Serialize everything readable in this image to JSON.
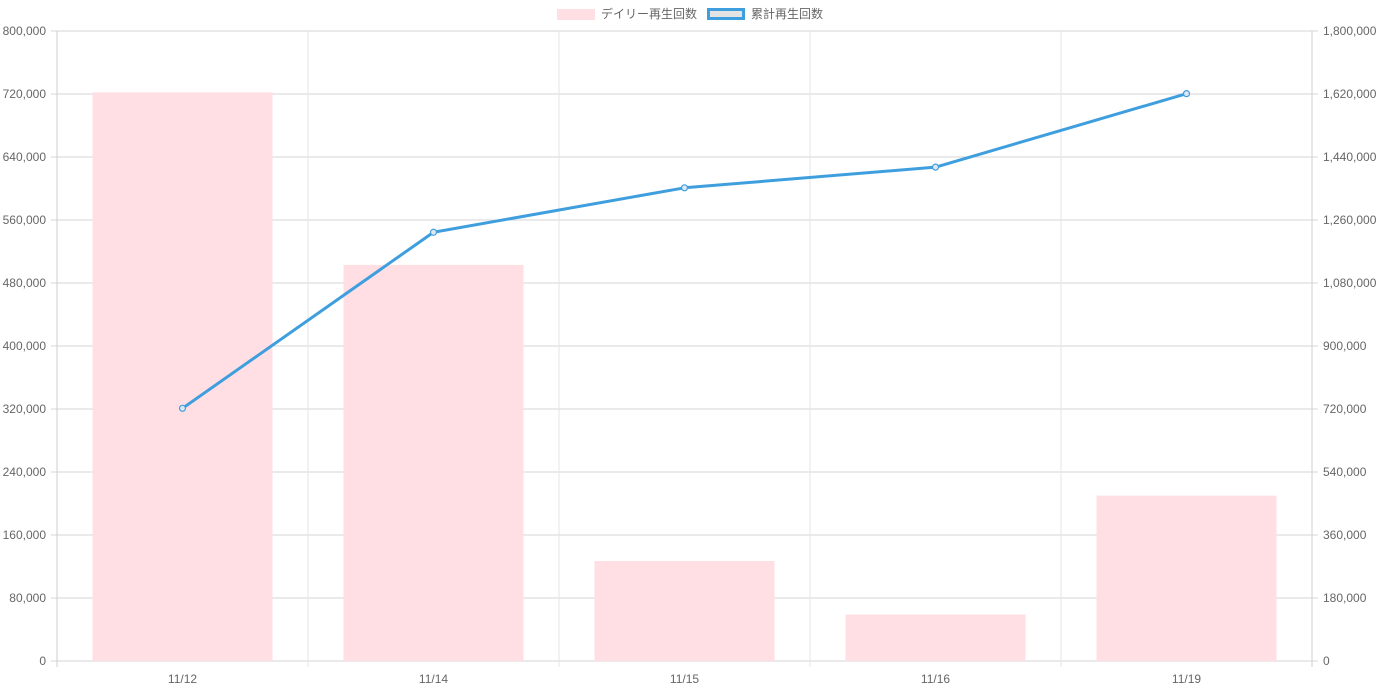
{
  "chart_data": {
    "type": "bar",
    "categories": [
      "11/12",
      "11/14",
      "11/15",
      "11/16",
      "11/19"
    ],
    "series": [
      {
        "name": "デイリー再生回数",
        "type": "bar",
        "axis": "left",
        "color": "#ffdfe4",
        "values": [
          722000,
          503000,
          127000,
          59000,
          210000
        ]
      },
      {
        "name": "累計再生回数",
        "type": "line",
        "axis": "right",
        "color": "#3f9fde",
        "values": [
          722000,
          1225000,
          1352000,
          1411000,
          1621000
        ]
      }
    ],
    "y_left": {
      "min": 0,
      "max": 800000,
      "ticks": [
        "0",
        "80,000",
        "160,000",
        "240,000",
        "320,000",
        "400,000",
        "480,000",
        "560,000",
        "640,000",
        "720,000",
        "800,000"
      ]
    },
    "y_right": {
      "min": 0,
      "max": 1800000,
      "ticks": [
        "0",
        "180,000",
        "360,000",
        "540,000",
        "720,000",
        "900,000",
        "1,080,000",
        "1,260,000",
        "1,440,000",
        "1,620,000",
        "1,800,000"
      ]
    },
    "grid": true,
    "legend_position": "top-center"
  }
}
